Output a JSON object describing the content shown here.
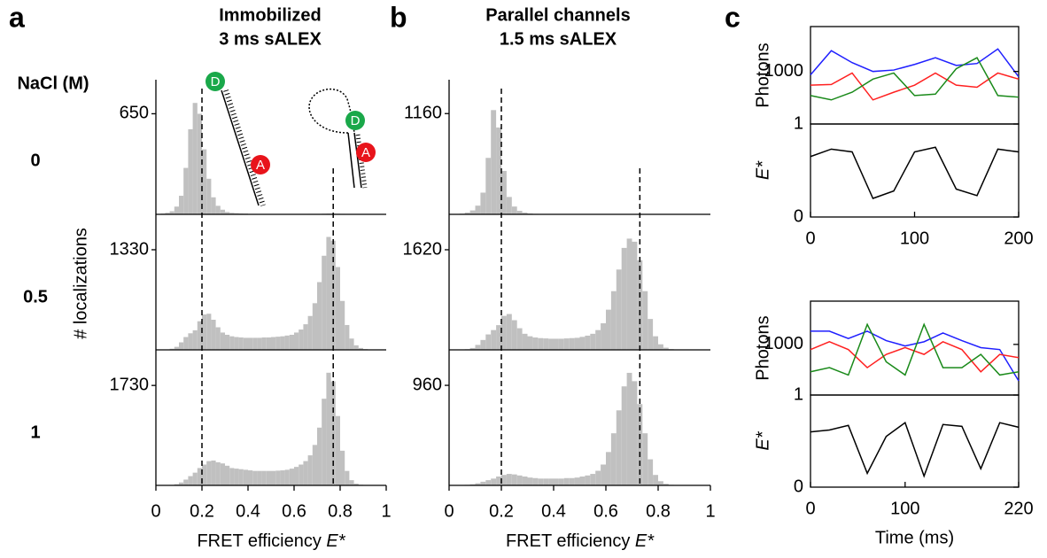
{
  "chart_data": [
    {
      "type": "histogram",
      "panel_label": "a",
      "title": "Immobilized",
      "subtitle": "3 ms sALEX",
      "row_header": "NaCl (M)",
      "ylabel": "# localizations",
      "xlabel": "FRET efficiency",
      "xlabel_var": "E*",
      "xlim": [
        0,
        1
      ],
      "xticks": [
        0,
        0.2,
        0.4,
        0.6,
        0.8,
        1
      ],
      "reference_lines": [
        0.2,
        0.77
      ],
      "color": "#c0c0c0",
      "dye_labels": {
        "donor": "D",
        "acceptor": "A"
      },
      "bins": [
        0,
        0.02,
        0.04,
        0.06,
        0.08,
        0.1,
        0.12,
        0.14,
        0.16,
        0.18,
        0.2,
        0.22,
        0.24,
        0.26,
        0.28,
        0.3,
        0.32,
        0.34,
        0.36,
        0.38,
        0.4,
        0.42,
        0.44,
        0.46,
        0.48,
        0.5,
        0.52,
        0.54,
        0.56,
        0.58,
        0.6,
        0.62,
        0.64,
        0.66,
        0.68,
        0.7,
        0.72,
        0.74,
        0.76,
        0.78,
        0.8,
        0.82,
        0.84,
        0.86,
        0.88,
        0.9,
        0.92,
        0.94,
        0.96,
        0.98,
        1
      ],
      "rows": [
        {
          "label": "0",
          "ylim": [
            0,
            870
          ],
          "yticks": [
            650
          ],
          "counts": [
            2,
            5,
            10,
            20,
            50,
            120,
            300,
            550,
            720,
            650,
            420,
            230,
            110,
            55,
            30,
            15,
            10,
            8,
            6,
            5,
            3,
            3,
            2,
            2,
            2,
            2,
            2,
            2,
            2,
            2,
            2,
            2,
            2,
            3,
            3,
            3,
            4,
            5,
            5,
            4,
            3,
            2,
            2,
            1,
            1,
            1,
            1,
            1,
            0,
            0
          ]
        },
        {
          "label": "0.5",
          "ylim": [
            0,
            1765
          ],
          "yticks": [
            1330
          ],
          "counts": [
            0,
            2,
            5,
            15,
            40,
            100,
            170,
            220,
            260,
            380,
            470,
            480,
            400,
            300,
            230,
            200,
            180,
            170,
            165,
            160,
            160,
            160,
            160,
            165,
            165,
            170,
            175,
            180,
            190,
            200,
            230,
            270,
            340,
            450,
            620,
            900,
            1250,
            1500,
            1450,
            1100,
            650,
            330,
            150,
            60,
            25,
            10,
            5,
            3,
            1,
            0
          ]
        },
        {
          "label": "1",
          "ylim": [
            0,
            2300
          ],
          "yticks": [
            1730
          ],
          "counts": [
            0,
            1,
            3,
            8,
            20,
            50,
            100,
            160,
            220,
            300,
            360,
            420,
            430,
            400,
            380,
            340,
            300,
            290,
            280,
            270,
            260,
            250,
            250,
            250,
            250,
            250,
            255,
            260,
            270,
            290,
            320,
            360,
            420,
            520,
            700,
            1000,
            1500,
            1950,
            1800,
            1200,
            600,
            250,
            90,
            30,
            10,
            4,
            2,
            1,
            0,
            0
          ]
        }
      ]
    },
    {
      "type": "histogram",
      "panel_label": "b",
      "title": "Parallel channels",
      "subtitle": "1.5 ms sALEX",
      "xlabel": "FRET efficiency",
      "xlabel_var": "E*",
      "xlim": [
        0,
        1
      ],
      "xticks": [
        0,
        0.2,
        0.4,
        0.6,
        0.8,
        1
      ],
      "reference_lines": [
        0.2,
        0.73
      ],
      "color": "#c0c0c0",
      "bins": [
        0,
        0.02,
        0.04,
        0.06,
        0.08,
        0.1,
        0.12,
        0.14,
        0.16,
        0.18,
        0.2,
        0.22,
        0.24,
        0.26,
        0.28,
        0.3,
        0.32,
        0.34,
        0.36,
        0.38,
        0.4,
        0.42,
        0.44,
        0.46,
        0.48,
        0.5,
        0.52,
        0.54,
        0.56,
        0.58,
        0.6,
        0.62,
        0.64,
        0.66,
        0.68,
        0.7,
        0.72,
        0.74,
        0.76,
        0.78,
        0.8,
        0.82,
        0.84,
        0.86,
        0.88,
        0.9,
        0.92,
        0.94,
        0.96,
        0.98,
        1
      ],
      "rows": [
        {
          "ylim": [
            0,
            1550
          ],
          "yticks": [
            1160
          ],
          "counts": [
            1,
            3,
            8,
            20,
            45,
            100,
            250,
            650,
            1200,
            1000,
            500,
            200,
            90,
            40,
            20,
            10,
            6,
            4,
            3,
            2,
            2,
            2,
            1,
            1,
            1,
            1,
            1,
            1,
            1,
            1,
            1,
            1,
            1,
            1,
            1,
            2,
            2,
            2,
            2,
            2,
            1,
            1,
            1,
            1,
            1,
            0,
            0,
            0,
            0,
            0
          ]
        },
        {
          "ylim": [
            0,
            2150
          ],
          "yticks": [
            1620
          ],
          "counts": [
            0,
            1,
            3,
            10,
            30,
            80,
            160,
            250,
            320,
            400,
            550,
            580,
            480,
            350,
            260,
            220,
            200,
            190,
            185,
            180,
            180,
            180,
            185,
            190,
            195,
            210,
            230,
            260,
            320,
            430,
            650,
            950,
            1300,
            1650,
            1800,
            1750,
            1450,
            950,
            500,
            220,
            90,
            35,
            12,
            5,
            2,
            1,
            0,
            0,
            0,
            0
          ]
        },
        {
          "ylim": [
            0,
            1275
          ],
          "yticks": [
            960
          ],
          "counts": [
            0,
            1,
            2,
            5,
            10,
            20,
            35,
            50,
            65,
            85,
            100,
            110,
            105,
            95,
            85,
            75,
            70,
            65,
            65,
            65,
            65,
            65,
            70,
            70,
            75,
            85,
            95,
            110,
            140,
            200,
            320,
            500,
            720,
            950,
            1080,
            1000,
            780,
            500,
            250,
            100,
            40,
            15,
            5,
            2,
            1,
            0,
            0,
            0,
            0,
            0
          ]
        }
      ]
    },
    {
      "type": "trace",
      "panel_label": "c",
      "x": [
        0,
        20,
        40,
        60,
        80,
        100,
        120,
        140,
        160,
        180,
        200
      ],
      "xlim": [
        0,
        200
      ],
      "xticks": [
        0,
        100,
        200
      ],
      "photons": {
        "ylabel": "Photons",
        "log_scale": true,
        "ylim": [
          30,
          20000
        ],
        "yticks": [
          1000
        ],
        "series": [
          {
            "color": "#1f1fff",
            "values": [
              800,
              4000,
              1800,
              1000,
              1100,
              1600,
              2500,
              1500,
              1700,
              4500,
              700
            ]
          },
          {
            "color": "#ff2020",
            "values": [
              400,
              420,
              900,
              150,
              250,
              400,
              900,
              400,
              350,
              900,
              600
            ]
          },
          {
            "color": "#1a8a1a",
            "values": [
              200,
              150,
              250,
              600,
              900,
              200,
              220,
              1200,
              2500,
              200,
              180
            ]
          }
        ]
      },
      "fret": {
        "ylabel": "E*",
        "ylim": [
          0,
          1
        ],
        "yticks": [
          0,
          1
        ],
        "series": [
          {
            "color": "#000000",
            "values": [
              0.65,
              0.73,
              0.7,
              0.2,
              0.28,
              0.7,
              0.75,
              0.3,
              0.23,
              0.73,
              0.7
            ]
          }
        ]
      }
    },
    {
      "type": "trace",
      "xlabel": "Time (ms)",
      "x": [
        0,
        20,
        40,
        60,
        80,
        100,
        120,
        140,
        160,
        180,
        200,
        220
      ],
      "xlim": [
        0,
        220
      ],
      "xticks": [
        0,
        100,
        220
      ],
      "photons": {
        "ylabel": "Photons",
        "log_scale": true,
        "ylim": [
          30,
          20000
        ],
        "yticks": [
          1000
        ],
        "series": [
          {
            "color": "#1f1fff",
            "values": [
              2500,
              2500,
              1500,
              2500,
              1300,
              900,
              1200,
              2200,
              1300,
              800,
              700,
              80
            ]
          },
          {
            "color": "#ff2020",
            "values": [
              700,
              1200,
              700,
              200,
              500,
              800,
              500,
              1200,
              700,
              150,
              500,
              400
            ]
          },
          {
            "color": "#1a8a1a",
            "values": [
              150,
              200,
              120,
              4000,
              300,
              120,
              4000,
              200,
              200,
              500,
              120,
              150
            ]
          }
        ]
      },
      "fret": {
        "ylabel": "E*",
        "ylim": [
          0,
          1
        ],
        "yticks": [
          0,
          1
        ],
        "series": [
          {
            "color": "#000000",
            "values": [
              0.6,
              0.62,
              0.67,
              0.15,
              0.55,
              0.7,
              0.12,
              0.68,
              0.66,
              0.2,
              0.7,
              0.65
            ]
          }
        ]
      }
    }
  ]
}
